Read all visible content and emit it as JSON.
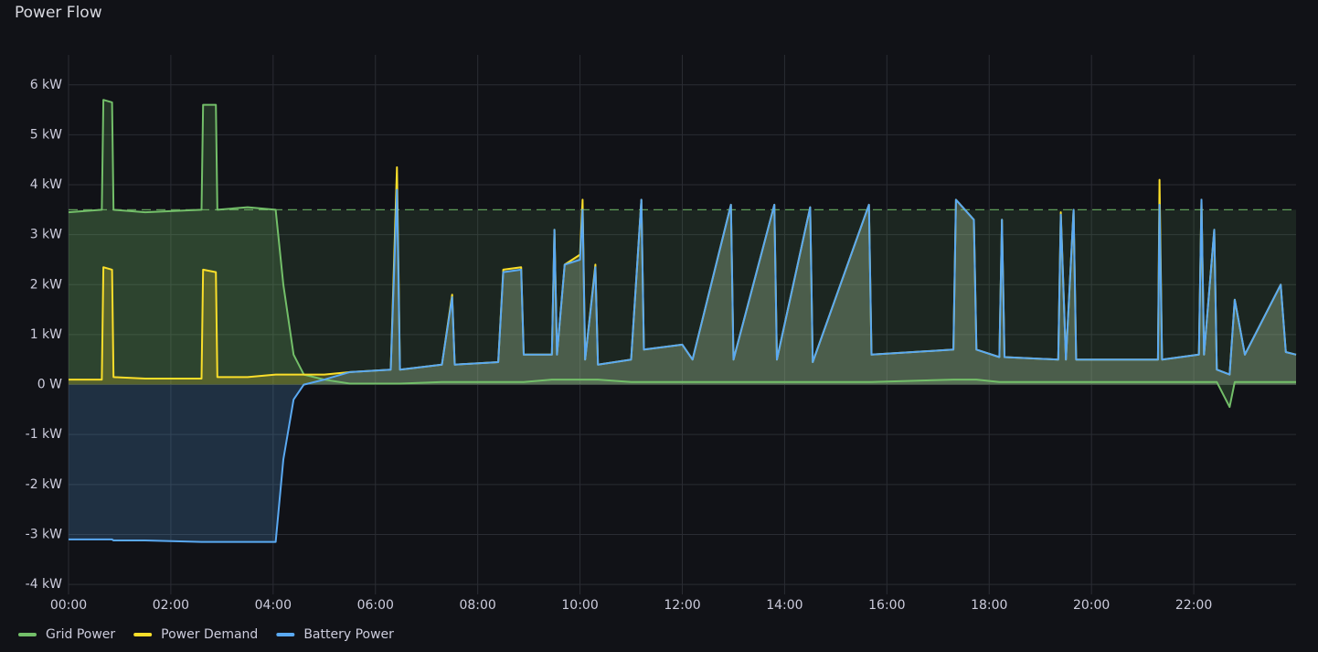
{
  "chart_data": {
    "type": "line",
    "title": "Power Flow",
    "x": [
      0,
      0.65,
      0.68,
      0.85,
      0.88,
      1.5,
      2.6,
      2.63,
      2.88,
      2.91,
      3.5,
      4.05,
      4.2,
      4.4,
      4.6,
      5.0,
      5.5,
      6.3,
      6.42,
      6.48,
      7.3,
      7.5,
      7.55,
      8.4,
      8.5,
      8.85,
      8.9,
      9.45,
      9.5,
      9.55,
      9.7,
      10.0,
      10.05,
      10.1,
      10.3,
      10.35,
      11.0,
      11.2,
      11.25,
      12.0,
      12.2,
      12.95,
      13.0,
      13.8,
      13.85,
      14.5,
      14.55,
      15.65,
      15.7,
      17.3,
      17.35,
      17.7,
      17.75,
      18.2,
      18.25,
      18.3,
      19.35,
      19.4,
      19.5,
      19.65,
      19.7,
      21.3,
      21.33,
      21.38,
      22.1,
      22.15,
      22.2,
      22.4,
      22.45,
      22.7,
      22.8,
      23.0,
      23.7,
      23.8,
      24.0
    ],
    "series": [
      {
        "name": "Grid Power",
        "color": "#73bf69",
        "values": [
          3.45,
          3.5,
          5.7,
          5.65,
          3.5,
          3.45,
          3.5,
          5.6,
          5.6,
          3.5,
          3.55,
          3.5,
          2.0,
          0.6,
          0.2,
          0.1,
          0.02,
          0.02,
          0.02,
          0.02,
          0.05,
          0.05,
          0.05,
          0.05,
          0.05,
          0.05,
          0.05,
          0.1,
          0.1,
          0.1,
          0.1,
          0.1,
          0.1,
          0.1,
          0.1,
          0.1,
          0.05,
          0.05,
          0.05,
          0.05,
          0.05,
          0.05,
          0.05,
          0.05,
          0.05,
          0.05,
          0.05,
          0.05,
          0.05,
          0.1,
          0.1,
          0.1,
          0.1,
          0.05,
          0.05,
          0.05,
          0.05,
          0.05,
          0.05,
          0.05,
          0.05,
          0.05,
          0.05,
          0.05,
          0.05,
          0.05,
          0.05,
          0.05,
          0.05,
          -0.45,
          0.05,
          0.05,
          0.05,
          0.05,
          0.05
        ]
      },
      {
        "name": "Power Demand",
        "color": "#fade2a",
        "values": [
          0.1,
          0.1,
          2.35,
          2.3,
          0.15,
          0.12,
          0.12,
          2.3,
          2.25,
          0.15,
          0.15,
          0.2,
          0.2,
          0.2,
          0.2,
          0.2,
          0.25,
          0.3,
          4.35,
          0.3,
          0.4,
          1.8,
          0.4,
          0.45,
          2.3,
          2.35,
          0.6,
          0.6,
          3.1,
          0.6,
          2.4,
          2.6,
          3.7,
          0.5,
          2.4,
          0.4,
          0.5,
          3.7,
          0.7,
          0.8,
          0.5,
          3.6,
          0.5,
          3.6,
          0.5,
          3.55,
          0.45,
          3.6,
          0.6,
          0.7,
          3.7,
          3.3,
          0.7,
          0.55,
          3.3,
          0.55,
          0.5,
          3.45,
          0.5,
          3.5,
          0.5,
          0.5,
          4.1,
          0.5,
          0.6,
          3.7,
          0.6,
          3.1,
          0.3,
          0.2,
          1.7,
          0.6,
          2.0,
          0.65,
          0.6
        ]
      },
      {
        "name": "Battery Power",
        "color": "#5aa9f2",
        "values": [
          -3.1,
          -3.1,
          -3.1,
          -3.1,
          -3.12,
          -3.12,
          -3.15,
          -3.15,
          -3.15,
          -3.15,
          -3.15,
          -3.15,
          -1.5,
          -0.3,
          0,
          0.1,
          0.25,
          0.3,
          3.9,
          0.3,
          0.4,
          1.75,
          0.4,
          0.45,
          2.25,
          2.3,
          0.6,
          0.6,
          3.1,
          0.6,
          2.4,
          2.5,
          3.5,
          0.5,
          2.35,
          0.4,
          0.5,
          3.7,
          0.7,
          0.8,
          0.5,
          3.6,
          0.5,
          3.6,
          0.5,
          3.55,
          0.45,
          3.6,
          0.6,
          0.7,
          3.7,
          3.3,
          0.7,
          0.55,
          3.3,
          0.55,
          0.5,
          3.4,
          0.5,
          3.5,
          0.5,
          0.5,
          3.6,
          0.5,
          0.6,
          3.7,
          0.6,
          3.1,
          0.3,
          0.2,
          1.7,
          0.6,
          2.0,
          0.65,
          0.6
        ]
      }
    ],
    "threshold": 3.5,
    "xlim": [
      0,
      24
    ],
    "xticks": [
      {
        "value": 0,
        "label": "00:00"
      },
      {
        "value": 2,
        "label": "02:00"
      },
      {
        "value": 4,
        "label": "04:00"
      },
      {
        "value": 6,
        "label": "06:00"
      },
      {
        "value": 8,
        "label": "08:00"
      },
      {
        "value": 10,
        "label": "10:00"
      },
      {
        "value": 12,
        "label": "12:00"
      },
      {
        "value": 14,
        "label": "14:00"
      },
      {
        "value": 16,
        "label": "16:00"
      },
      {
        "value": 18,
        "label": "18:00"
      },
      {
        "value": 20,
        "label": "20:00"
      },
      {
        "value": 22,
        "label": "22:00"
      }
    ],
    "ylim": [
      -4.2,
      6.6
    ],
    "yticks": [
      {
        "value": 6,
        "label": "6 kW"
      },
      {
        "value": 5,
        "label": "5 kW"
      },
      {
        "value": 4,
        "label": "4 kW"
      },
      {
        "value": 3,
        "label": "3 kW"
      },
      {
        "value": 2,
        "label": "2 kW"
      },
      {
        "value": 1,
        "label": "1 kW"
      },
      {
        "value": 0,
        "label": "0 W"
      },
      {
        "value": -1,
        "label": "-1 kW"
      },
      {
        "value": -2,
        "label": "-2 kW"
      },
      {
        "value": -3,
        "label": "-3 kW"
      },
      {
        "value": -4,
        "label": "-4 kW"
      }
    ],
    "grid": true,
    "legend": "bottom-left"
  }
}
